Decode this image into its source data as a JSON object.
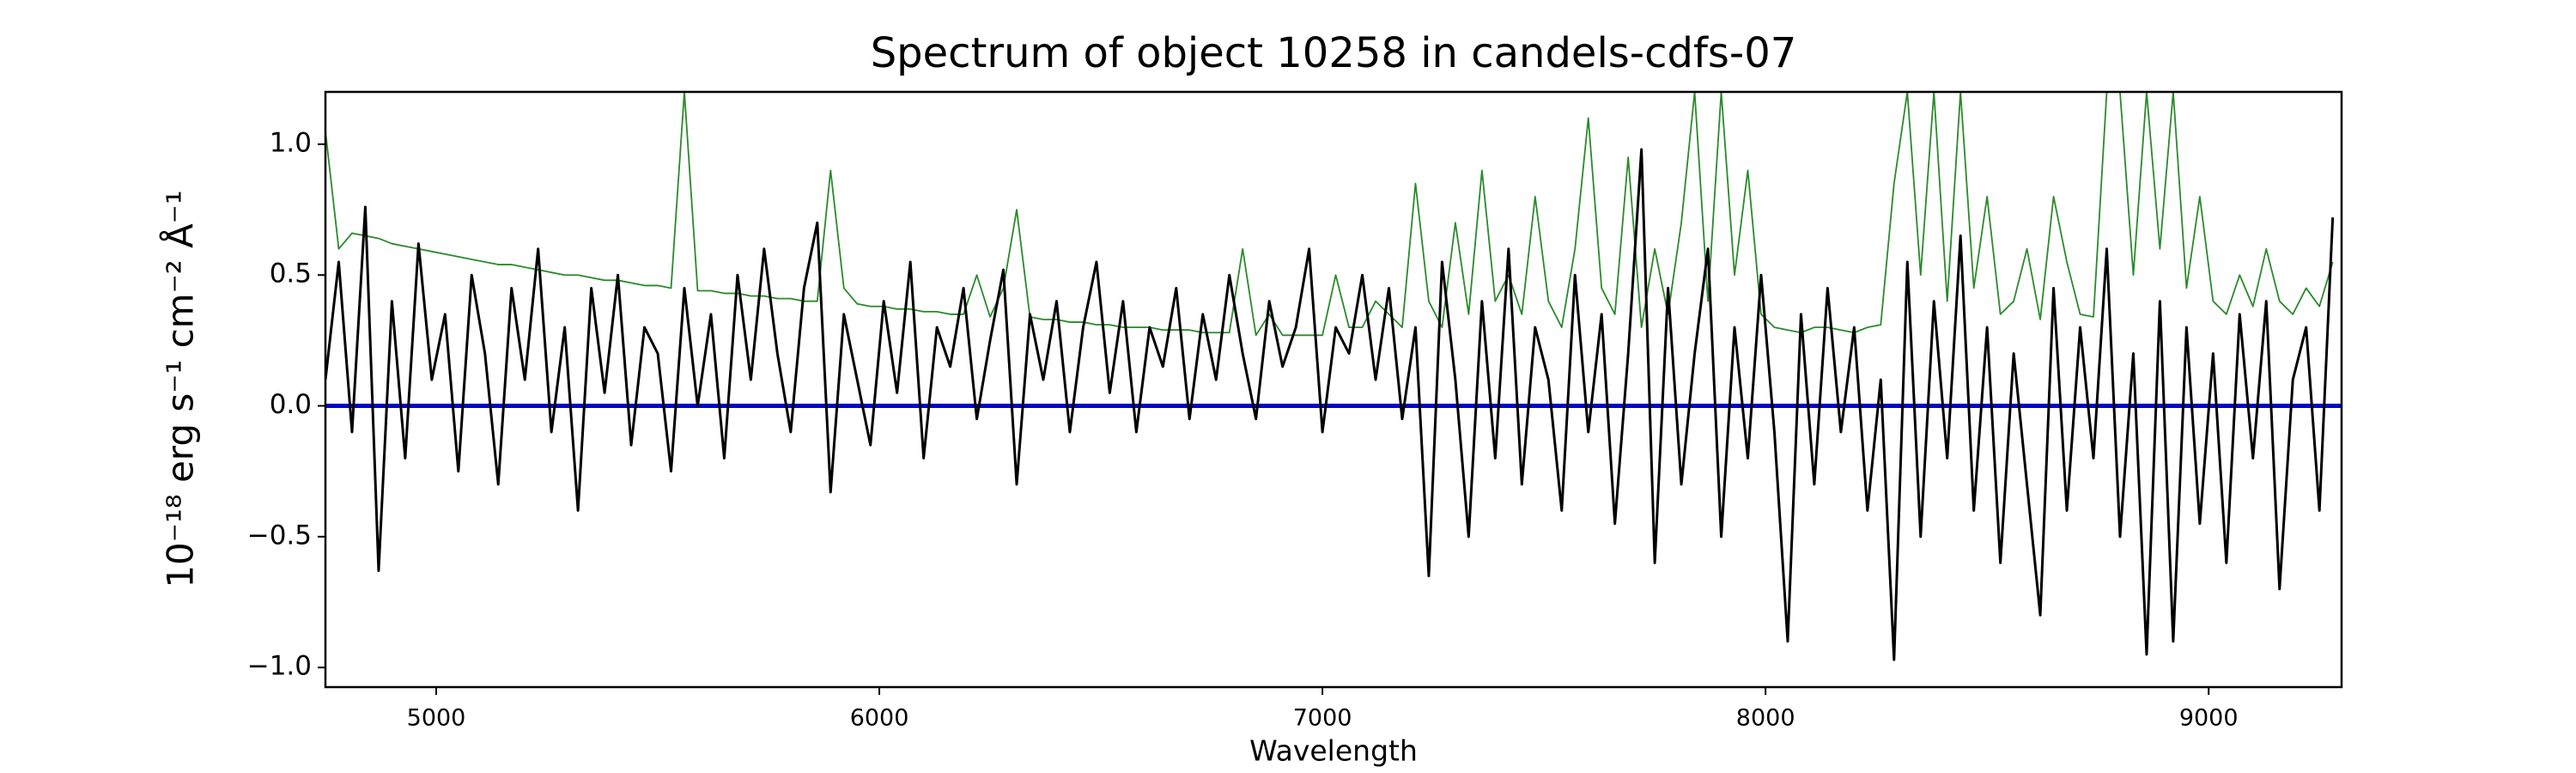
{
  "chart_data": {
    "type": "line",
    "title": "Spectrum of object 10258 in candels-cdfs-07",
    "x_label": "Wavelength",
    "y_label": "10⁻¹⁸ erg s⁻¹ cm⁻² Å⁻¹",
    "xlim": [
      4750,
      9300
    ],
    "ylim": [
      -1.075,
      1.2
    ],
    "xticks": [
      5000,
      6000,
      7000,
      8000,
      9000
    ],
    "yticks": [
      {
        "value": -1.0,
        "label": "−1.0"
      },
      {
        "value": -0.5,
        "label": "−0.5"
      },
      {
        "value": 0.0,
        "label": "0.0"
      },
      {
        "value": 0.5,
        "label": "0.5"
      },
      {
        "value": 1.0,
        "label": "1.0"
      }
    ],
    "grid": false,
    "x": [
      4750,
      4780,
      4810,
      4840,
      4870,
      4900,
      4930,
      4960,
      4990,
      5020,
      5050,
      5080,
      5110,
      5140,
      5170,
      5200,
      5230,
      5260,
      5290,
      5320,
      5350,
      5380,
      5410,
      5440,
      5470,
      5500,
      5530,
      5560,
      5590,
      5620,
      5650,
      5680,
      5710,
      5740,
      5770,
      5800,
      5830,
      5860,
      5890,
      5920,
      5950,
      5980,
      6010,
      6040,
      6070,
      6100,
      6130,
      6160,
      6190,
      6220,
      6250,
      6280,
      6310,
      6340,
      6370,
      6400,
      6430,
      6460,
      6490,
      6520,
      6550,
      6580,
      6610,
      6640,
      6670,
      6700,
      6730,
      6760,
      6790,
      6820,
      6850,
      6880,
      6910,
      6940,
      6970,
      7000,
      7030,
      7060,
      7090,
      7120,
      7150,
      7180,
      7210,
      7240,
      7270,
      7300,
      7330,
      7360,
      7390,
      7420,
      7450,
      7480,
      7510,
      7540,
      7570,
      7600,
      7630,
      7660,
      7690,
      7720,
      7750,
      7780,
      7810,
      7840,
      7870,
      7900,
      7930,
      7960,
      7990,
      8020,
      8050,
      8080,
      8110,
      8140,
      8170,
      8200,
      8230,
      8260,
      8290,
      8320,
      8350,
      8380,
      8410,
      8440,
      8470,
      8500,
      8530,
      8560,
      8590,
      8620,
      8650,
      8680,
      8710,
      8740,
      8770,
      8800,
      8830,
      8860,
      8890,
      8920,
      8950,
      8980,
      9010,
      9040,
      9070,
      9100,
      9130,
      9160,
      9190,
      9220,
      9250,
      9280
    ],
    "series": [
      {
        "color": "#2a8a2a",
        "width": 1.8,
        "values": [
          1.05,
          0.6,
          0.66,
          0.65,
          0.64,
          0.62,
          0.61,
          0.6,
          0.59,
          0.58,
          0.57,
          0.56,
          0.55,
          0.54,
          0.54,
          0.53,
          0.52,
          0.51,
          0.5,
          0.5,
          0.49,
          0.48,
          0.48,
          0.47,
          0.46,
          0.46,
          0.45,
          1.2,
          0.44,
          0.44,
          0.43,
          0.43,
          0.42,
          0.42,
          0.41,
          0.41,
          0.4,
          0.4,
          0.9,
          0.45,
          0.39,
          0.38,
          0.38,
          0.37,
          0.37,
          0.36,
          0.36,
          0.35,
          0.35,
          0.5,
          0.34,
          0.45,
          0.75,
          0.34,
          0.33,
          0.33,
          0.32,
          0.32,
          0.31,
          0.31,
          0.3,
          0.3,
          0.3,
          0.29,
          0.29,
          0.29,
          0.28,
          0.28,
          0.28,
          0.6,
          0.27,
          0.35,
          0.27,
          0.27,
          0.27,
          0.27,
          0.5,
          0.3,
          0.3,
          0.4,
          0.35,
          0.3,
          0.85,
          0.4,
          0.3,
          0.7,
          0.35,
          0.9,
          0.4,
          0.5,
          0.35,
          0.8,
          0.4,
          0.3,
          0.6,
          1.1,
          0.45,
          0.35,
          0.95,
          0.3,
          0.6,
          0.35,
          0.7,
          1.2,
          0.4,
          1.2,
          0.5,
          0.9,
          0.35,
          0.3,
          0.29,
          0.28,
          0.3,
          0.3,
          0.29,
          0.28,
          0.3,
          0.31,
          0.85,
          1.2,
          0.5,
          1.2,
          0.4,
          1.2,
          0.45,
          0.8,
          0.35,
          0.4,
          0.6,
          0.33,
          0.8,
          0.55,
          0.35,
          0.34,
          1.2,
          1.2,
          0.5,
          1.2,
          0.6,
          1.2,
          0.45,
          0.8,
          0.4,
          0.35,
          0.5,
          0.38,
          0.6,
          0.4,
          0.35,
          0.45,
          0.38,
          0.55
        ]
      },
      {
        "color": "#0000cc",
        "width": 5,
        "x": [
          4750,
          9300
        ],
        "values": [
          0,
          0
        ]
      },
      {
        "color": "#000000",
        "width": 3,
        "values": [
          0.1,
          0.55,
          -0.1,
          0.76,
          -0.63,
          0.4,
          -0.2,
          0.62,
          0.1,
          0.35,
          -0.25,
          0.5,
          0.2,
          -0.3,
          0.45,
          0.1,
          0.6,
          -0.1,
          0.3,
          -0.4,
          0.45,
          0.05,
          0.5,
          -0.15,
          0.3,
          0.2,
          -0.25,
          0.45,
          0.0,
          0.35,
          -0.2,
          0.5,
          0.1,
          0.6,
          0.2,
          -0.1,
          0.45,
          0.7,
          -0.33,
          0.35,
          0.1,
          -0.15,
          0.4,
          0.05,
          0.55,
          -0.2,
          0.3,
          0.15,
          0.45,
          -0.05,
          0.25,
          0.52,
          -0.3,
          0.35,
          0.1,
          0.4,
          -0.1,
          0.3,
          0.55,
          0.05,
          0.4,
          -0.1,
          0.3,
          0.15,
          0.45,
          -0.05,
          0.35,
          0.1,
          0.5,
          0.2,
          -0.05,
          0.4,
          0.15,
          0.3,
          0.6,
          -0.1,
          0.3,
          0.2,
          0.5,
          0.1,
          0.45,
          -0.05,
          0.3,
          -0.65,
          0.55,
          0.1,
          -0.5,
          0.4,
          -0.2,
          0.6,
          -0.3,
          0.3,
          0.1,
          -0.4,
          0.5,
          -0.1,
          0.35,
          -0.45,
          0.2,
          0.98,
          -0.6,
          0.45,
          -0.3,
          0.2,
          0.6,
          -0.5,
          0.3,
          -0.2,
          0.5,
          -0.1,
          -0.9,
          0.35,
          -0.3,
          0.45,
          -0.1,
          0.3,
          -0.4,
          0.1,
          -0.97,
          0.55,
          -0.5,
          0.4,
          -0.2,
          0.65,
          -0.4,
          0.3,
          -0.6,
          0.2,
          -0.3,
          -0.8,
          0.45,
          -0.4,
          0.3,
          -0.2,
          0.6,
          -0.5,
          0.2,
          -0.95,
          0.4,
          -0.9,
          0.3,
          -0.45,
          0.2,
          -0.6,
          0.35,
          -0.2,
          0.4,
          -0.7,
          0.1,
          0.3,
          -0.4,
          0.72
        ]
      }
    ]
  }
}
